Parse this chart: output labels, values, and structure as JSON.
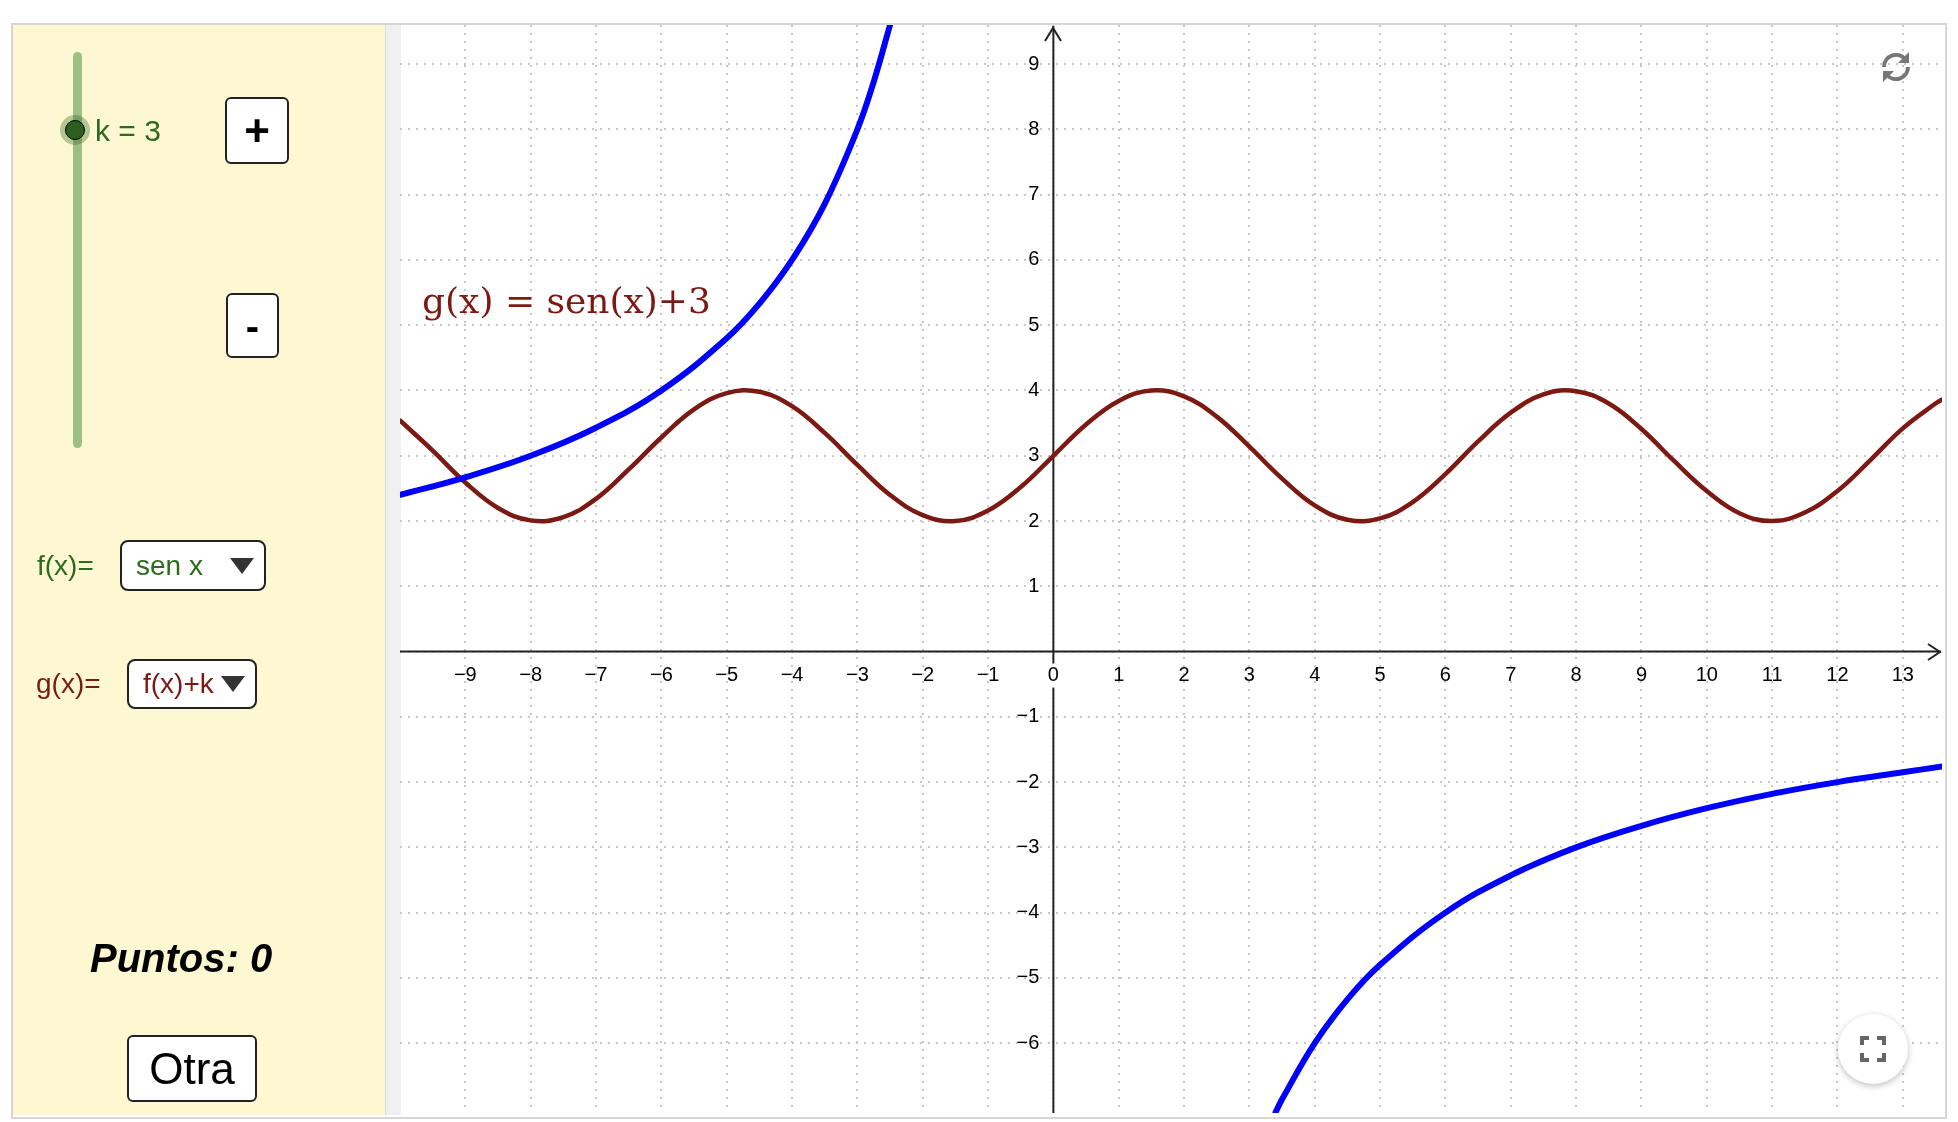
{
  "chart_data": {
    "type": "line",
    "xlim": [
      -10,
      13.6
    ],
    "ylim": [
      -7.07,
      9.6
    ],
    "xticks": [
      {
        "value": -9,
        "label": "−9"
      },
      {
        "value": -8,
        "label": "−8"
      },
      {
        "value": -7,
        "label": "−7"
      },
      {
        "value": -6,
        "label": "−6"
      },
      {
        "value": -5,
        "label": "−5"
      },
      {
        "value": -4,
        "label": "−4"
      },
      {
        "value": -3,
        "label": "−3"
      },
      {
        "value": -2,
        "label": "−2"
      },
      {
        "value": -1,
        "label": "−1"
      },
      0,
      1,
      2,
      3,
      4,
      5,
      6,
      7,
      8,
      9,
      10,
      11,
      12,
      13
    ],
    "yticks": [
      {
        "value": -6,
        "label": "−6"
      },
      {
        "value": -5,
        "label": "−5"
      },
      {
        "value": -4,
        "label": "−4"
      },
      {
        "value": -3,
        "label": "−3"
      },
      {
        "value": -2,
        "label": "−2"
      },
      {
        "value": -1,
        "label": "−1"
      },
      {
        "value": 0,
        "label": null
      },
      1,
      2,
      3,
      4,
      5,
      6,
      7,
      8,
      9
    ],
    "grid": true,
    "marker": "none",
    "line_style": "solid",
    "series": [
      {
        "color": "#0000ff",
        "x": [
          -10,
          -9,
          -8,
          -7,
          -6,
          -5,
          -4.5,
          -4,
          -3.5,
          -3,
          -2.75,
          -2.5,
          0,
          3.4,
          3.5,
          4,
          4.5,
          5,
          6,
          7,
          8,
          9,
          10,
          11,
          12,
          13,
          13.6
        ],
        "values": [
          2.4,
          2.67,
          3,
          3.43,
          4,
          4.8,
          5.33,
          6,
          6.86,
          8,
          8.73,
          9.6,
          null,
          -7.06,
          -6.86,
          -6,
          -5.33,
          -4.8,
          -4,
          -3.43,
          -3,
          -2.67,
          -2.4,
          -2.18,
          -2,
          -1.85,
          -1.76
        ]
      },
      {
        "name": "g(x) = sen(x)+3",
        "color": "#7b1912",
        "x": [
          -10,
          -9.5,
          -9,
          -8.5,
          -8,
          -7.5,
          -7,
          -6.5,
          -6,
          -5.5,
          -5,
          -4.5,
          -4,
          -3.5,
          -3,
          -2.5,
          -2,
          -1.5,
          -1,
          -0.5,
          0,
          0.5,
          1,
          1.5,
          2,
          2.5,
          3,
          3.5,
          4,
          4.5,
          5,
          5.5,
          6,
          6.5,
          7,
          7.5,
          8,
          8.5,
          9,
          9.5,
          10,
          10.5,
          11,
          11.5,
          12,
          12.5,
          13,
          13.5,
          13.6
        ],
        "values": [
          3.54,
          3.08,
          2.59,
          2.2,
          2.01,
          2.06,
          2.34,
          2.79,
          3.28,
          3.71,
          3.96,
          3.98,
          3.76,
          3.35,
          2.86,
          2.4,
          2.09,
          2,
          2.16,
          2.52,
          3,
          3.48,
          3.84,
          4,
          3.91,
          3.6,
          3.14,
          2.65,
          2.24,
          2.02,
          2.04,
          2.29,
          2.72,
          3.22,
          3.66,
          3.94,
          3.99,
          3.8,
          3.41,
          2.92,
          2.46,
          2.12,
          2,
          2.13,
          2.46,
          2.93,
          3.42,
          3.8,
          3.86
        ]
      }
    ],
    "annotations": [
      "k = 3",
      "+",
      "-",
      "f(x)=",
      "sen x",
      "g(x)=",
      "f(x)+k",
      "Puntos: 0",
      "Otra"
    ]
  }
}
